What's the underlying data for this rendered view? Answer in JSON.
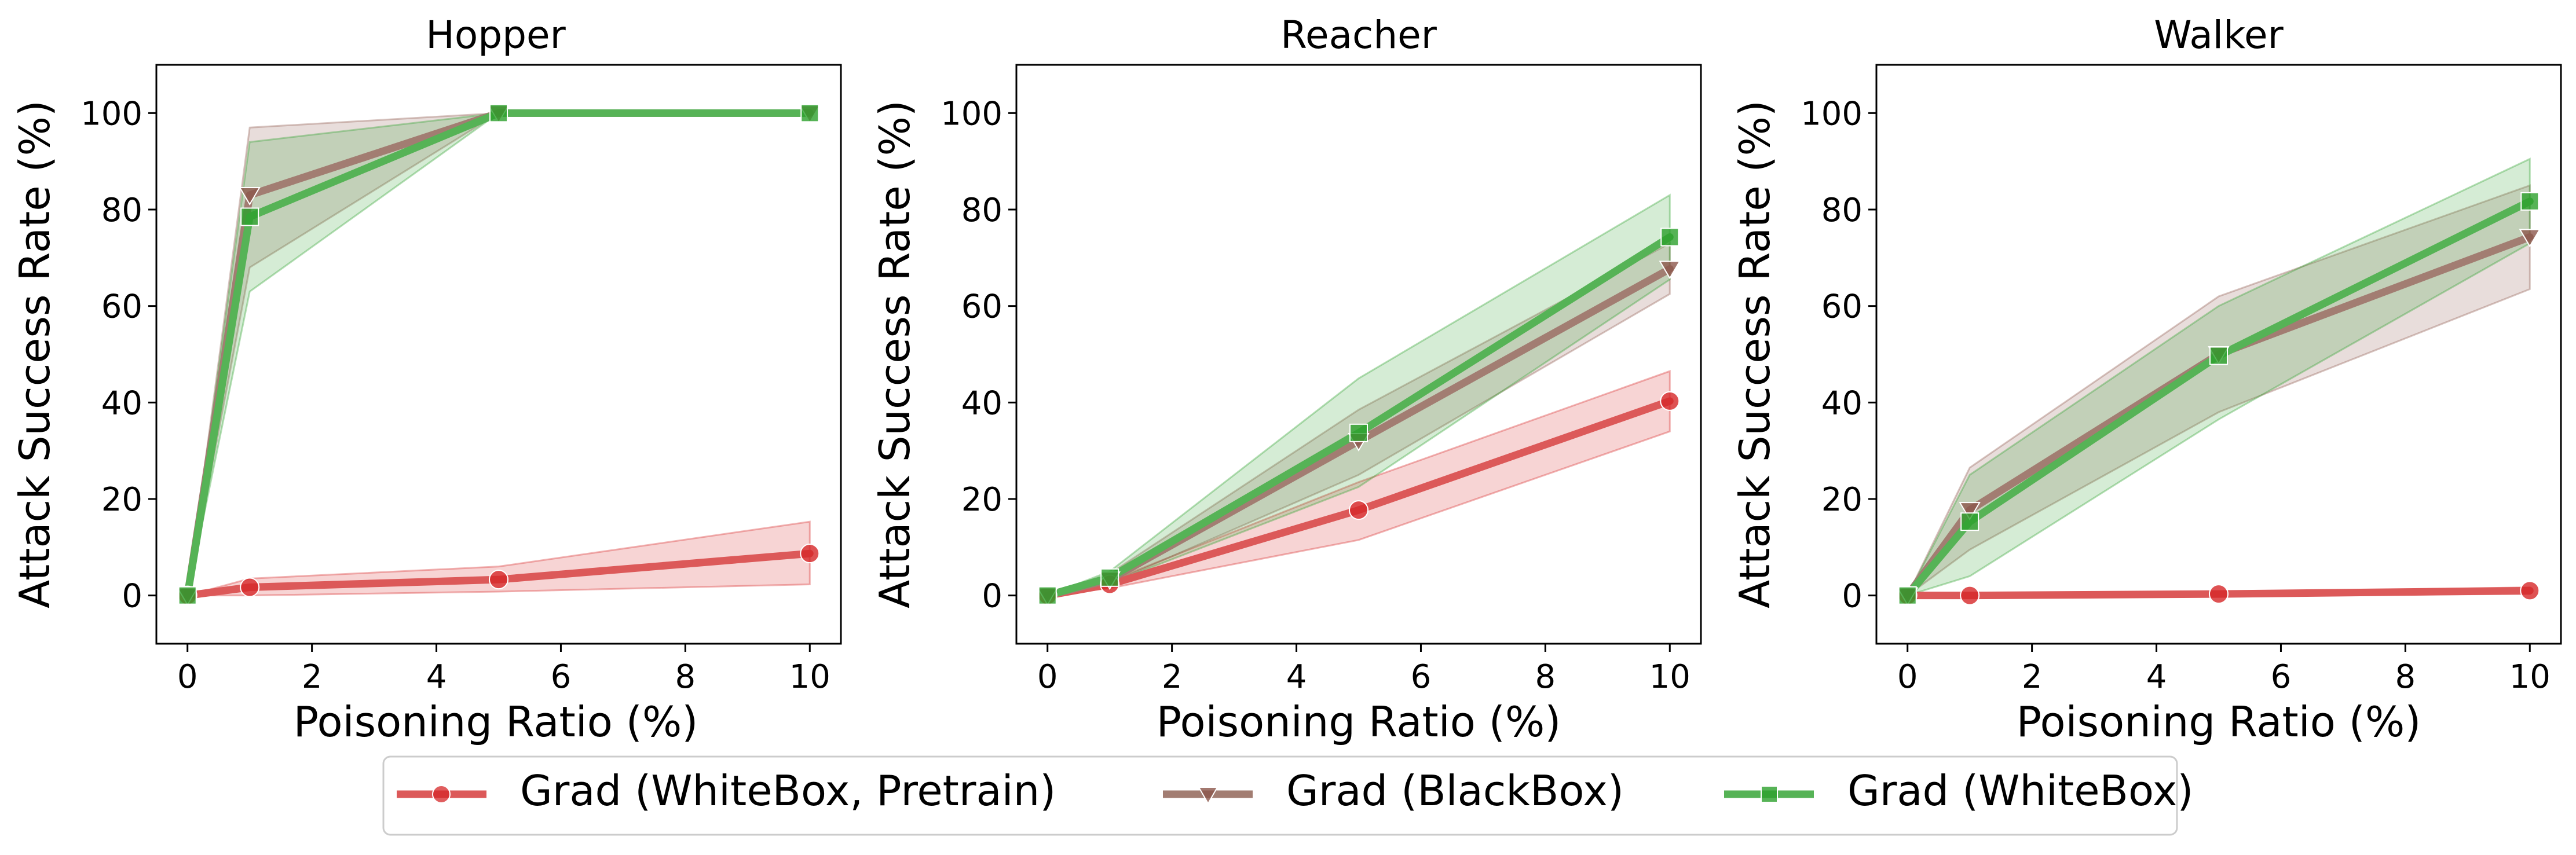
{
  "chart_data": [
    {
      "type": "line",
      "title": "Hopper",
      "xlabel": "Poisoning Ratio (%)",
      "ylabel": "Attack Success Rate (%)",
      "xlim": [
        -0.5,
        10.5
      ],
      "ylim": [
        -10,
        110
      ],
      "xticks": [
        0,
        2,
        4,
        6,
        8,
        10
      ],
      "yticks": [
        0,
        20,
        40,
        60,
        80,
        100
      ],
      "x": [
        0,
        1,
        5,
        10
      ],
      "series": [
        {
          "name": "Grad (WhiteBox, Pretrain)",
          "values": [
            0,
            1.7,
            3.3,
            8.7
          ],
          "lower": [
            0,
            0,
            0.8,
            2.3
          ],
          "upper": [
            0,
            3.5,
            6.0,
            15.3
          ]
        },
        {
          "name": "Grad (BlackBox)",
          "values": [
            0,
            83,
            100,
            100
          ],
          "lower": [
            0,
            68,
            100,
            100
          ],
          "upper": [
            0,
            97,
            100,
            100
          ]
        },
        {
          "name": "Grad (WhiteBox)",
          "values": [
            0,
            78.5,
            100,
            100
          ],
          "lower": [
            0,
            63,
            100,
            100
          ],
          "upper": [
            0,
            94,
            100,
            100
          ]
        }
      ]
    },
    {
      "type": "line",
      "title": "Reacher",
      "xlabel": "Poisoning Ratio (%)",
      "ylabel": "Attack Success Rate (%)",
      "xlim": [
        -0.5,
        10.5
      ],
      "ylim": [
        -10,
        110
      ],
      "xticks": [
        0,
        2,
        4,
        6,
        8,
        10
      ],
      "yticks": [
        0,
        20,
        40,
        60,
        80,
        100
      ],
      "x": [
        0,
        1,
        5,
        10
      ],
      "series": [
        {
          "name": "Grad (WhiteBox, Pretrain)",
          "values": [
            0,
            2.3,
            17.7,
            40.3
          ],
          "lower": [
            0,
            1.5,
            11.5,
            34.0
          ],
          "upper": [
            0,
            3.0,
            23.5,
            46.5
          ]
        },
        {
          "name": "Grad (BlackBox)",
          "values": [
            0,
            3.3,
            32.0,
            67.7
          ],
          "lower": [
            0,
            2.5,
            25.0,
            62.5
          ],
          "upper": [
            0,
            4.5,
            38.5,
            73.0
          ]
        },
        {
          "name": "Grad (WhiteBox)",
          "values": [
            0,
            3.7,
            33.7,
            74.3
          ],
          "lower": [
            0,
            2.5,
            22.5,
            65.5
          ],
          "upper": [
            0,
            5.0,
            45.0,
            83.0
          ]
        }
      ]
    },
    {
      "type": "line",
      "title": "Walker",
      "xlabel": "Poisoning Ratio (%)",
      "ylabel": "Attack Success Rate (%)",
      "xlim": [
        -0.5,
        10.5
      ],
      "ylim": [
        -10,
        110
      ],
      "xticks": [
        0,
        2,
        4,
        6,
        8,
        10
      ],
      "yticks": [
        0,
        20,
        40,
        60,
        80,
        100
      ],
      "x": [
        0,
        1,
        5,
        10
      ],
      "series": [
        {
          "name": "Grad (WhiteBox, Pretrain)",
          "values": [
            0,
            0,
            0.3,
            1.0
          ],
          "lower": [
            0,
            0,
            0,
            0.3
          ],
          "upper": [
            0,
            0,
            0.6,
            1.7
          ]
        },
        {
          "name": "Grad (BlackBox)",
          "values": [
            0,
            17.7,
            50.0,
            74.3
          ],
          "lower": [
            0,
            9.5,
            38.0,
            63.5
          ],
          "upper": [
            0,
            26.5,
            62.0,
            85.0
          ]
        },
        {
          "name": "Grad (WhiteBox)",
          "values": [
            0,
            15.3,
            49.7,
            81.7
          ],
          "lower": [
            0,
            4.0,
            36.5,
            73.0
          ],
          "upper": [
            0,
            25.0,
            60.0,
            90.5
          ]
        }
      ]
    }
  ],
  "legend": {
    "position": "bottom-center",
    "entries": [
      {
        "label": "Grad (WhiteBox, Pretrain)",
        "marker": "circle"
      },
      {
        "label": "Grad (BlackBox)",
        "marker": "triangle-down"
      },
      {
        "label": "Grad (WhiteBox)",
        "marker": "square"
      }
    ]
  },
  "colors": {
    "series": [
      "#d62728",
      "#8c564b",
      "#2ca02c"
    ],
    "line": [
      "#dc5959",
      "#a27d72",
      "#56b356"
    ],
    "band_opacity": 0.2
  }
}
